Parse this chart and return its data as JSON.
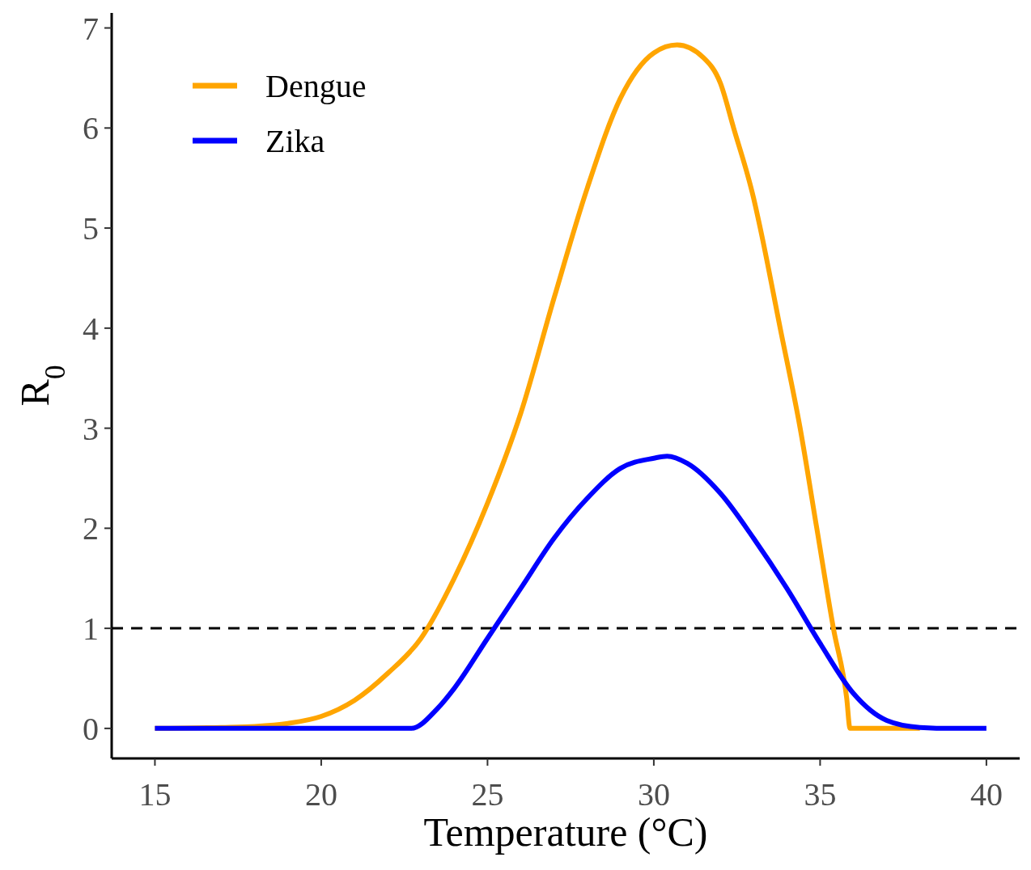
{
  "chart_data": {
    "type": "line",
    "xlabel": "Temperature (°C)",
    "ylabel": "R$_{0}$",
    "xlim": [
      13.7,
      41.0
    ],
    "ylim": [
      -0.3,
      7.15
    ],
    "xticks": [
      15,
      20,
      25,
      30,
      35,
      40
    ],
    "yticks": [
      0,
      1,
      2,
      3,
      4,
      5,
      6,
      7
    ],
    "grid": false,
    "legend": "top left",
    "line_style": "solid",
    "marker": "none",
    "ref_lines": [
      {
        "axis": "y",
        "value": 1,
        "color": "#000000",
        "line_style": "dashed"
      }
    ],
    "series": [
      {
        "name": "Dengue",
        "color": "#ffa500",
        "x": [
          15,
          17,
          18,
          19,
          20,
          21,
          22,
          23,
          24,
          25,
          26,
          27,
          28,
          29,
          30,
          30.7,
          31.5,
          32,
          32.4,
          33,
          33.2,
          33.8,
          34.4,
          34.9,
          35.4,
          35.8,
          35.9,
          37,
          38
        ],
        "values": [
          0,
          0.01,
          0.02,
          0.05,
          0.12,
          0.28,
          0.55,
          0.9,
          1.5,
          2.25,
          3.15,
          4.3,
          5.4,
          6.3,
          6.75,
          6.83,
          6.7,
          6.45,
          6.0,
          5.3,
          5.0,
          4.0,
          3.0,
          2.0,
          1.0,
          0.3,
          0,
          0,
          0
        ]
      },
      {
        "name": "Zika",
        "color": "#0000ff",
        "x": [
          15,
          22.7,
          23.5,
          24,
          25,
          26,
          27,
          28,
          29,
          30,
          30.4,
          31,
          32,
          33,
          34,
          35,
          36,
          37,
          38,
          39,
          40
        ],
        "values": [
          0,
          0,
          0.2,
          0.4,
          0.9,
          1.4,
          1.9,
          2.3,
          2.6,
          2.7,
          2.72,
          2.65,
          2.35,
          1.9,
          1.4,
          0.85,
          0.35,
          0.08,
          0.01,
          0,
          0
        ]
      }
    ]
  }
}
